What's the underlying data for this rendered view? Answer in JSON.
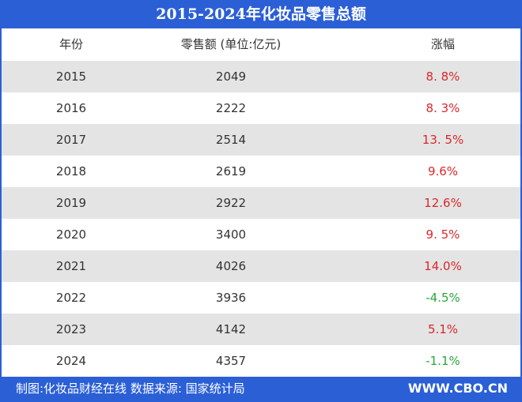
{
  "header": {
    "title": "2015-2024年化妆品零售总额"
  },
  "table": {
    "columns": [
      "年份",
      "零售额 (单位:亿元)",
      "涨幅"
    ],
    "rows": [
      [
        "2015",
        "2049",
        "8. 8%"
      ],
      [
        "2016",
        "2222",
        "8. 3%"
      ],
      [
        "2017",
        "2514",
        "13. 5%"
      ],
      [
        "2018",
        "2619",
        "9.6%"
      ],
      [
        "2019",
        "2922",
        "12.6%"
      ],
      [
        "2020",
        "3400",
        "9. 5%"
      ],
      [
        "2021",
        "4026",
        "14.0%"
      ],
      [
        "2022",
        "3936",
        "-4.5%"
      ],
      [
        "2023",
        "4142",
        "5.1%"
      ],
      [
        "2024",
        "4357",
        "-1.1%"
      ]
    ]
  },
  "footer": {
    "source": "制图:化妆品财经在线   数据来源: 国家统计局",
    "site": "WWW.CBO.CN"
  }
}
